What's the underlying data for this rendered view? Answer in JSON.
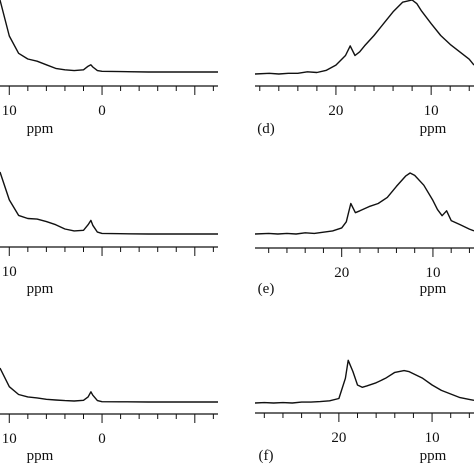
{
  "chart_data": [
    {
      "type": "line",
      "panel": "left-top",
      "panel_label": "",
      "xlabel": "ppm",
      "xlim": [
        11,
        -12.5
      ],
      "x_reversed": true,
      "tick_labels": [
        {
          "x": 10,
          "label": "10"
        },
        {
          "x": 0,
          "label": "0"
        }
      ],
      "series": [
        {
          "x": [
            11,
            10,
            9,
            8,
            7,
            6,
            5,
            4,
            3,
            2,
            1.5,
            1.2,
            1.0,
            0.5,
            0,
            -2,
            -5,
            -8,
            -12.5
          ],
          "y": [
            1.0,
            0.5,
            0.26,
            0.18,
            0.15,
            0.1,
            0.05,
            0.03,
            0.02,
            0.03,
            0.08,
            0.1,
            0.07,
            0.02,
            0.01,
            0.005,
            0.0,
            0.0,
            0.0
          ]
        }
      ]
    },
    {
      "type": "line",
      "panel": "left-middle",
      "panel_label": "",
      "xlabel": "ppm",
      "xlim": [
        11,
        -12.5
      ],
      "x_reversed": true,
      "tick_labels": [
        {
          "x": 10,
          "label": "10"
        }
      ],
      "series": [
        {
          "x": [
            11,
            10,
            9,
            8,
            7,
            6,
            5,
            4,
            3,
            2,
            1.5,
            1.2,
            1.0,
            0.5,
            0,
            -2,
            -5,
            -8,
            -12.5
          ],
          "y": [
            1.0,
            0.55,
            0.3,
            0.25,
            0.24,
            0.2,
            0.15,
            0.08,
            0.05,
            0.06,
            0.15,
            0.22,
            0.14,
            0.03,
            0.01,
            0.005,
            0.0,
            0.0,
            0.0
          ]
        }
      ]
    },
    {
      "type": "line",
      "panel": "left-bottom",
      "panel_label": "",
      "xlabel": "ppm",
      "xlim": [
        11,
        -12.5
      ],
      "x_reversed": true,
      "tick_labels": [
        {
          "x": 10,
          "label": "10"
        },
        {
          "x": 0,
          "label": "0"
        }
      ],
      "series": [
        {
          "x": [
            11,
            10,
            9,
            8,
            7,
            6,
            5,
            4,
            3,
            2,
            1.5,
            1.2,
            1.0,
            0.5,
            0,
            -2,
            -5,
            -8,
            -12.5
          ],
          "y": [
            1.0,
            0.45,
            0.22,
            0.15,
            0.12,
            0.08,
            0.06,
            0.04,
            0.03,
            0.05,
            0.15,
            0.3,
            0.2,
            0.04,
            0.01,
            0.005,
            0.0,
            0.0,
            0.0
          ]
        }
      ]
    },
    {
      "type": "line",
      "panel": "right-top",
      "panel_label": "(d)",
      "xlabel": "ppm",
      "xlim": [
        28.5,
        5.5
      ],
      "x_reversed": true,
      "tick_labels": [
        {
          "x": 20,
          "label": "20"
        },
        {
          "x": 10,
          "label": "10"
        }
      ],
      "series": [
        {
          "x": [
            28.5,
            27,
            26,
            25,
            24,
            23,
            22,
            21,
            20,
            19,
            18.5,
            18,
            17.5,
            17,
            16,
            15,
            14,
            13,
            12,
            11.5,
            11,
            10,
            9,
            8,
            7,
            6,
            5.5
          ],
          "y": [
            0.0,
            0.01,
            0.0,
            0.01,
            0.01,
            0.03,
            0.02,
            0.05,
            0.12,
            0.25,
            0.38,
            0.25,
            0.3,
            0.38,
            0.52,
            0.68,
            0.84,
            0.97,
            1.0,
            0.95,
            0.85,
            0.68,
            0.52,
            0.4,
            0.3,
            0.2,
            0.12
          ]
        }
      ]
    },
    {
      "type": "line",
      "panel": "right-middle",
      "panel_label": "(e)",
      "xlabel": "ppm",
      "xlim": [
        29.5,
        5.5
      ],
      "x_reversed": true,
      "tick_labels": [
        {
          "x": 20,
          "label": "20"
        },
        {
          "x": 10,
          "label": "10"
        }
      ],
      "series": [
        {
          "x": [
            29.5,
            28,
            27,
            26,
            25,
            24,
            23,
            22,
            21,
            20,
            19.5,
            19,
            18.5,
            18,
            17,
            16,
            15,
            14,
            13,
            12.5,
            12,
            11,
            10,
            9.5,
            9,
            8.5,
            8,
            7,
            6,
            5.5
          ],
          "y": [
            0.0,
            0.01,
            0.0,
            0.01,
            0.0,
            0.02,
            0.01,
            0.03,
            0.05,
            0.1,
            0.2,
            0.5,
            0.35,
            0.38,
            0.45,
            0.5,
            0.6,
            0.78,
            0.95,
            1.0,
            0.96,
            0.8,
            0.55,
            0.4,
            0.3,
            0.38,
            0.22,
            0.15,
            0.08,
            0.05
          ]
        }
      ]
    },
    {
      "type": "line",
      "panel": "right-bottom",
      "panel_label": "(f)",
      "xlabel": "ppm",
      "xlim": [
        29,
        5.5
      ],
      "x_reversed": true,
      "tick_labels": [
        {
          "x": 20,
          "label": "20"
        },
        {
          "x": 10,
          "label": "10"
        }
      ],
      "series": [
        {
          "x": [
            29,
            28,
            27,
            26,
            25,
            24,
            23,
            22,
            21,
            20,
            19.3,
            19,
            18.5,
            18,
            17.5,
            17,
            16,
            15,
            14,
            13,
            12.5,
            12,
            11,
            10,
            9,
            8,
            7,
            6,
            5.5
          ],
          "y": [
            0.0,
            0.01,
            0.0,
            0.01,
            0.0,
            0.02,
            0.02,
            0.03,
            0.05,
            0.1,
            0.55,
            0.95,
            0.7,
            0.4,
            0.35,
            0.38,
            0.45,
            0.55,
            0.68,
            0.72,
            0.7,
            0.65,
            0.55,
            0.4,
            0.28,
            0.2,
            0.12,
            0.08,
            0.06
          ]
        }
      ]
    }
  ]
}
